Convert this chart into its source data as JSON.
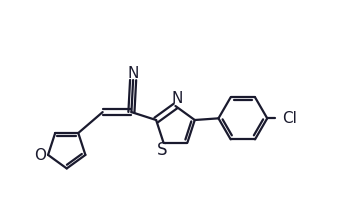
{
  "bg_color": "#ffffff",
  "line_color": "#1a1a2e",
  "line_width": 1.6,
  "font_size": 10,
  "figsize": [
    3.4,
    2.12
  ],
  "dpi": 100,
  "xlim": [
    0,
    10
  ],
  "ylim": [
    0,
    6.24
  ]
}
